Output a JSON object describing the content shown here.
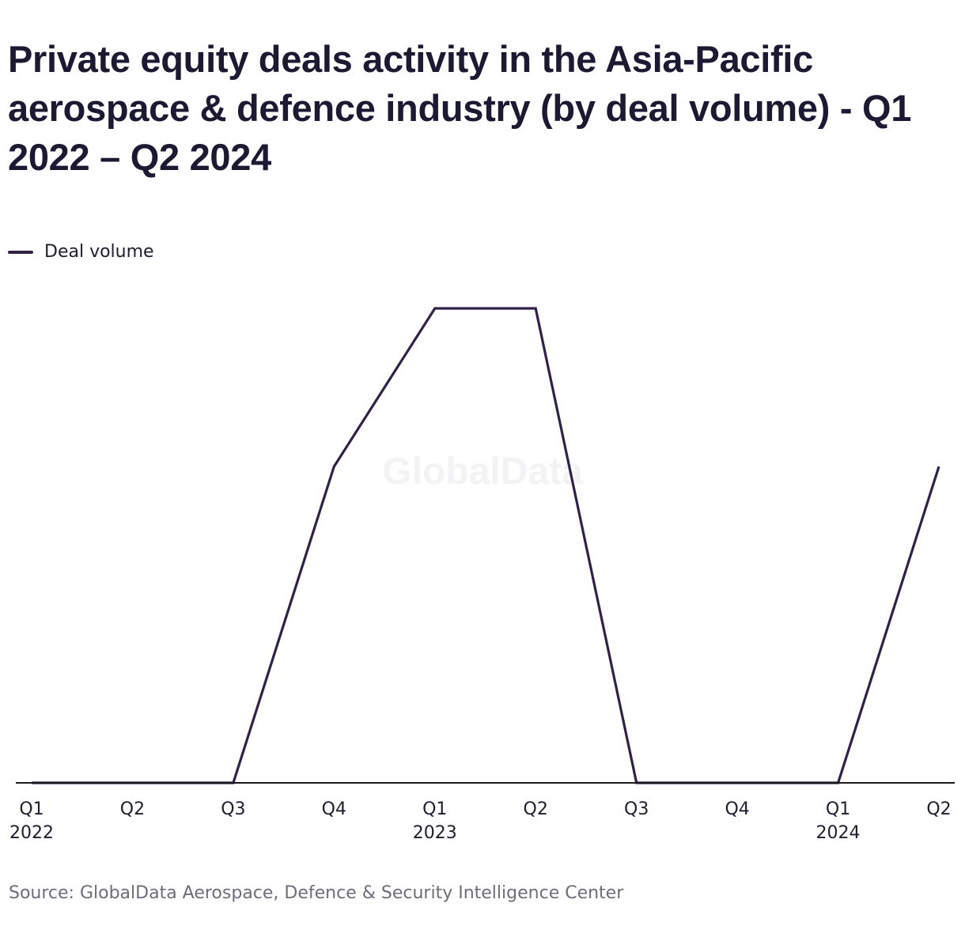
{
  "title": "Private equity deals activity in the Asia-Pacific aerospace & defence industry (by deal volume) - Q1 2022 – Q2 2024",
  "legend": {
    "series_label": "Deal volume"
  },
  "watermark": "GlobalData",
  "source": "Source: GlobalData Aerospace, Defence & Security Intelligence Center",
  "colors": {
    "line": "#2e2248",
    "axis": "#1a1a1a",
    "watermark": "#f3f3f5"
  },
  "chart_data": {
    "type": "line",
    "title": "Private equity deals activity in the Asia-Pacific aerospace & defence industry (by deal volume) - Q1 2022 – Q2 2024",
    "categories": [
      "Q1 2022",
      "Q2 2022",
      "Q3 2022",
      "Q4 2022",
      "Q1 2023",
      "Q2 2023",
      "Q3 2023",
      "Q4 2023",
      "Q1 2024",
      "Q2 2024"
    ],
    "tick_labels": [
      {
        "quarter": "Q1",
        "year": "2022"
      },
      {
        "quarter": "Q2",
        "year": ""
      },
      {
        "quarter": "Q3",
        "year": ""
      },
      {
        "quarter": "Q4",
        "year": ""
      },
      {
        "quarter": "Q1",
        "year": "2023"
      },
      {
        "quarter": "Q2",
        "year": ""
      },
      {
        "quarter": "Q3",
        "year": ""
      },
      {
        "quarter": "Q4",
        "year": ""
      },
      {
        "quarter": "Q1",
        "year": "2024"
      },
      {
        "quarter": "Q2",
        "year": ""
      }
    ],
    "series": [
      {
        "name": "Deal volume",
        "values": [
          0,
          0,
          0,
          2,
          3,
          3,
          0,
          0,
          0,
          2
        ]
      }
    ],
    "xlabel": "",
    "ylabel": "",
    "ylim": [
      0,
      3
    ],
    "grid": false,
    "legend_position": "top-left"
  }
}
